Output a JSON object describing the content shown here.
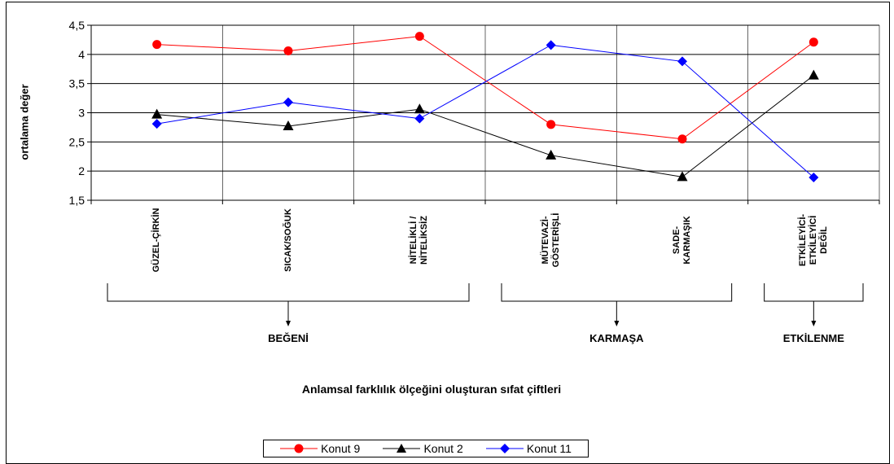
{
  "chart_data": {
    "type": "line",
    "categories": [
      "GÜZEL-ÇİRKİN",
      "SICAK/SOĞUK",
      "NİTELİKLİ /\nNİTELİKSİZ",
      "MÜTEVAZİ-\nGÖSTERİŞLİ",
      "SADE-\nKARMAŞIK",
      "ETKİLEYİCİ-\nETKİLEYİCİ\nDEĞİL"
    ],
    "series": [
      {
        "name": "Konut 9",
        "values": [
          4.17,
          4.06,
          4.31,
          2.8,
          2.55,
          4.21
        ],
        "color": "#ff0000",
        "marker": "circle"
      },
      {
        "name": "Konut 2",
        "values": [
          2.97,
          2.77,
          3.06,
          2.27,
          1.9,
          3.64
        ],
        "color": "#000000",
        "marker": "triangle"
      },
      {
        "name": "Konut 11",
        "values": [
          2.81,
          3.18,
          2.9,
          4.16,
          3.88,
          1.89
        ],
        "color": "#0000ff",
        "marker": "diamond"
      }
    ],
    "ylabel": "ortalama değer",
    "xlabel": "Anlamsal farklılık ölçeğini oluşturan sıfat çiftleri",
    "ylim": [
      1.5,
      4.5
    ],
    "yticks": [
      "1,5",
      "2",
      "2,5",
      "3",
      "3,5",
      "4",
      "4,5"
    ],
    "groups": [
      {
        "label": "BEĞENİ",
        "categories": [
          0,
          1,
          2
        ]
      },
      {
        "label": "KARMAŞA",
        "categories": [
          3,
          4
        ]
      },
      {
        "label": "ETKİLENME",
        "categories": [
          5
        ]
      }
    ],
    "grid": true,
    "legend_position": "bottom"
  }
}
